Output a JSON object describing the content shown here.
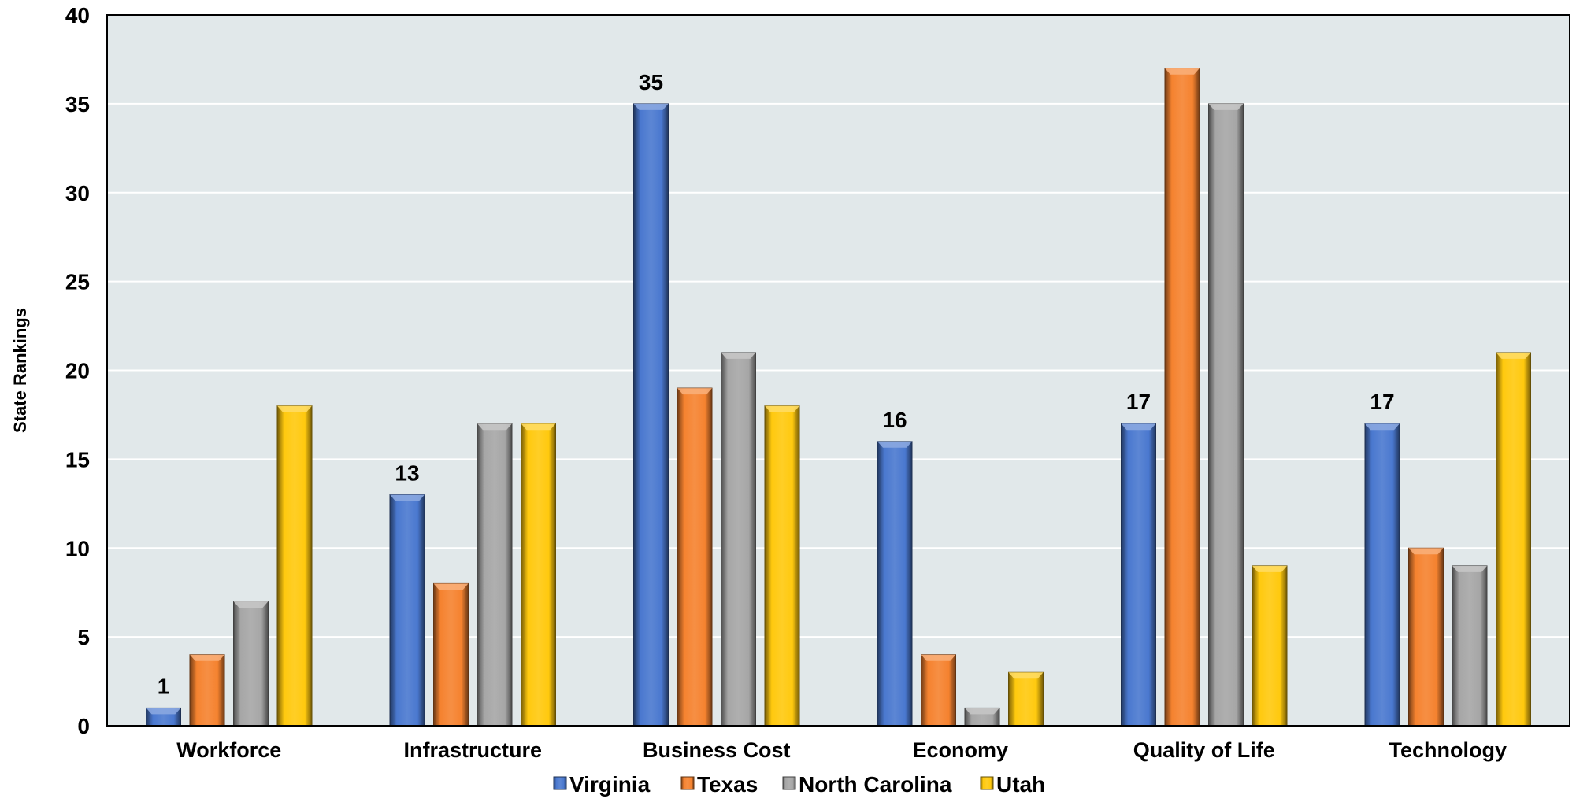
{
  "chart_data": {
    "type": "bar",
    "ylabel": "State Rankings",
    "xlabel": "",
    "ylim": [
      0,
      40
    ],
    "yticks": [
      0,
      5,
      10,
      15,
      20,
      25,
      30,
      35,
      40
    ],
    "grid": true,
    "legend_position": "bottom",
    "plot_background": "#e1e8ea",
    "categories": [
      "Workforce",
      "Infrastructure",
      "Business Cost",
      "Economy",
      "Quality of Life",
      "Technology"
    ],
    "series": [
      {
        "name": "Virginia",
        "color": "#4a78cf",
        "values": [
          1,
          13,
          35,
          16,
          17,
          17
        ],
        "show_labels": true
      },
      {
        "name": "Texas",
        "color": "#f5822f",
        "values": [
          4,
          8,
          19,
          4,
          37,
          10
        ],
        "show_labels": false
      },
      {
        "name": "North Carolina",
        "color": "#a6a6a6",
        "values": [
          7,
          17,
          21,
          1,
          35,
          9
        ],
        "show_labels": false
      },
      {
        "name": "Utah",
        "color": "#ffc90e",
        "values": [
          18,
          17,
          18,
          3,
          9,
          21
        ],
        "show_labels": false
      }
    ]
  }
}
